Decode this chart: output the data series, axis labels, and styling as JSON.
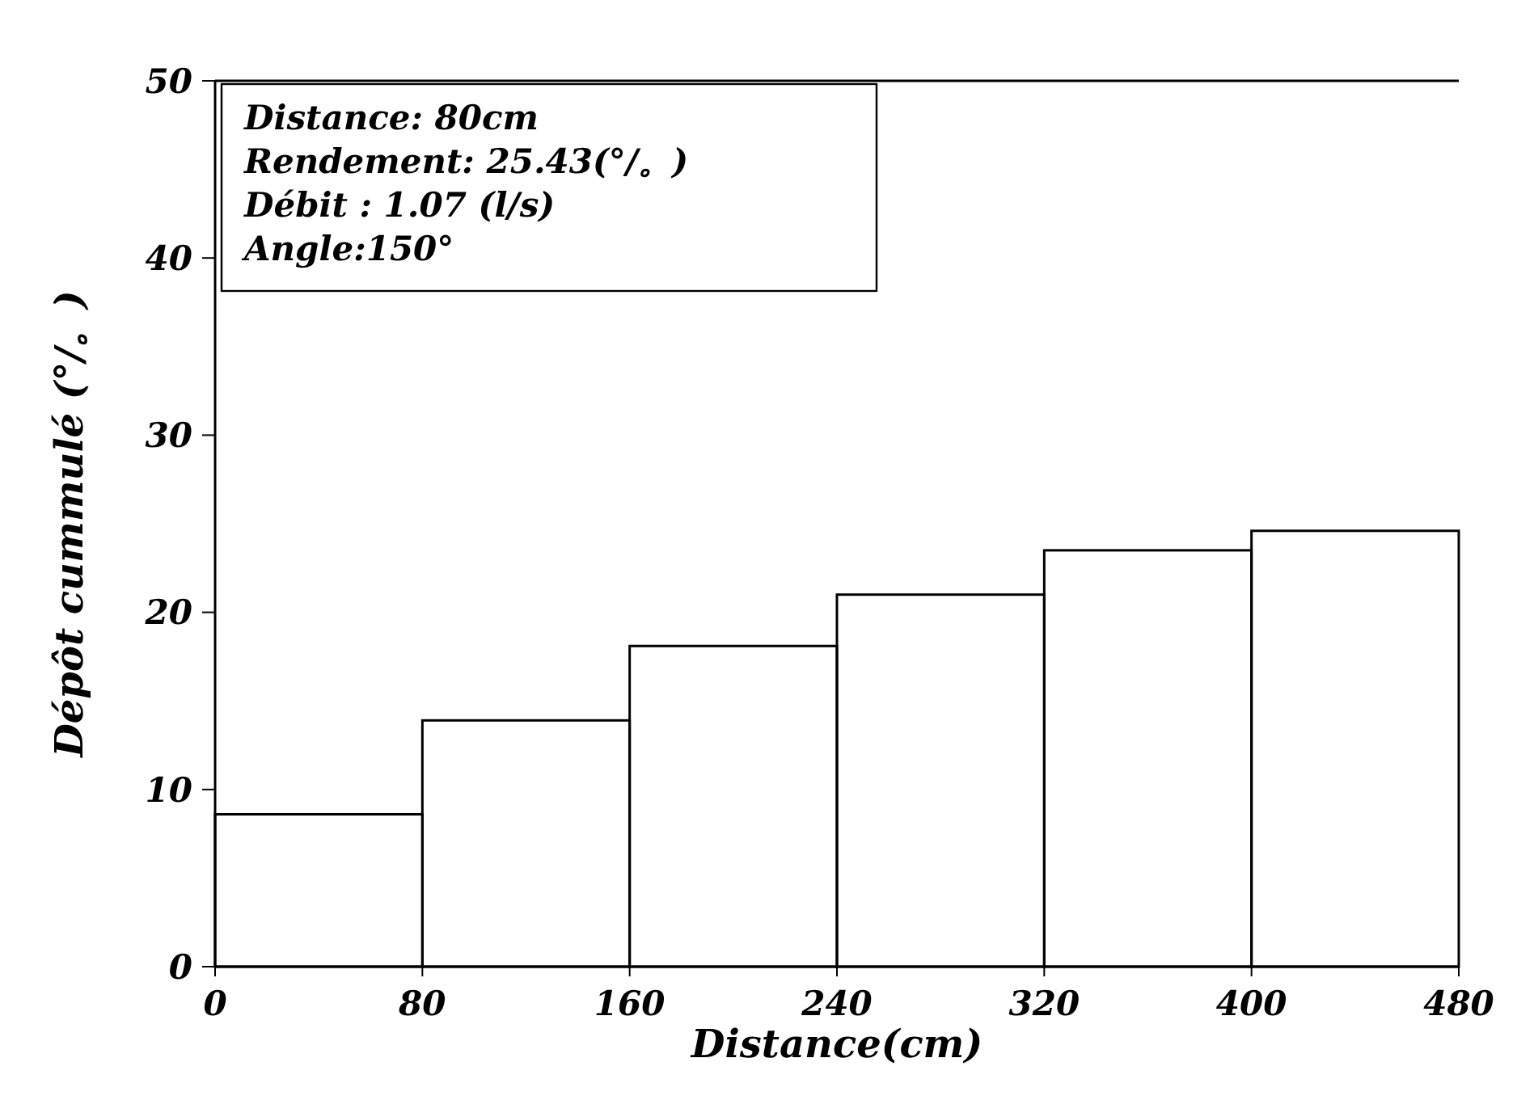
{
  "chart_data": {
    "type": "histogram",
    "xlabel": "Distance(cm)",
    "ylabel": "Dépôt cummulé (°/。)",
    "bins": [
      0,
      80,
      160,
      240,
      320,
      400,
      480
    ],
    "values": [
      8.6,
      13.9,
      18.1,
      21.0,
      23.5,
      24.6
    ],
    "color": "#000000",
    "xlim": [
      0,
      480
    ],
    "xticks": [
      0,
      80,
      160,
      240,
      320,
      400,
      480
    ],
    "ylim": [
      0,
      50
    ],
    "yticks": [
      0,
      10,
      20,
      30,
      40,
      50
    ],
    "annotations": [
      "Distance: 80cm",
      "Rendement: 25.43(°/。)",
      "Débit : 1.07 (l/s)",
      "Angle:150°"
    ],
    "grid": false
  }
}
